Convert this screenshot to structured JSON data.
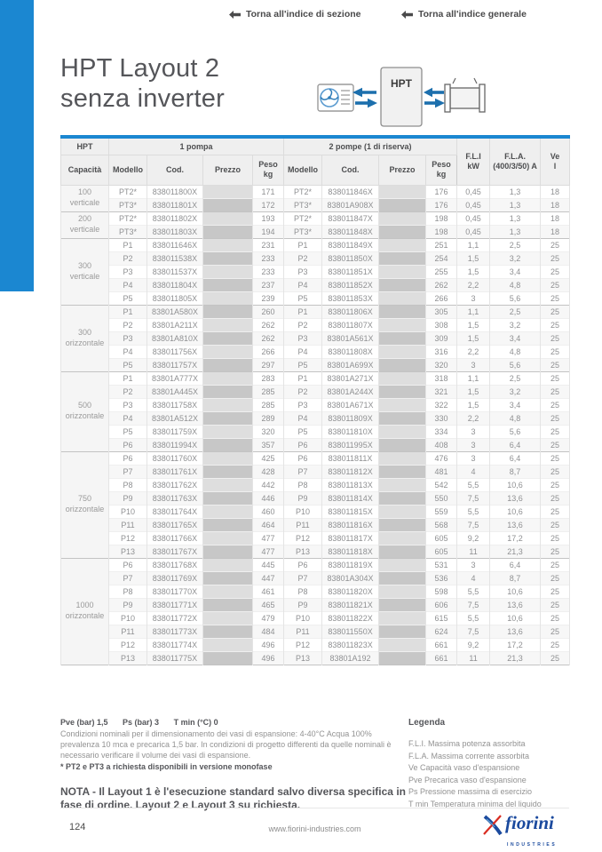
{
  "colors": {
    "accent_blue": "#1b87d1",
    "diagram_arrow_blue": "#1c6fad",
    "logo_blue": "#1b4a9e",
    "logo_red": "#d92c21",
    "price_cell_light": "#dedede",
    "price_cell_dark": "#c7c7c7"
  },
  "nav": {
    "section_index_label": "Torna all'indice di sezione",
    "general_index_label": "Torna all'indice generale"
  },
  "title": {
    "line1": "HPT Layout 2",
    "line2": "senza inverter"
  },
  "diagram": {
    "hpt_label": "HPT"
  },
  "icons": {
    "back_arrow": "left-arrow",
    "fan_unit": "fan-coil-unit",
    "heat_exchanger": "radiator"
  },
  "table": {
    "header": {
      "hpt": "HPT",
      "one_pump": "1 pompa",
      "two_pumps": "2 pompe (1 di riserva)",
      "capacity": "Capacità",
      "model": "Modello",
      "code": "Cod.",
      "price": "Prezzo",
      "weight": "Peso kg",
      "fli": "F.L.I kW",
      "fla": "F.L.A. (400/3/50) A",
      "ve": "Ve l"
    },
    "groups": [
      {
        "capacity": {
          "value": "100",
          "orientation": "verticale"
        },
        "rows": [
          [
            "PT2*",
            "838011800X",
            "171",
            "PT2*",
            "838011846X",
            "176",
            "0,45",
            "1,3",
            "18"
          ],
          [
            "PT3*",
            "838011801X",
            "172",
            "PT3*",
            "83801A908X",
            "176",
            "0,45",
            "1,3",
            "18"
          ]
        ]
      },
      {
        "capacity": {
          "value": "200",
          "orientation": "verticale"
        },
        "rows": [
          [
            "PT2*",
            "838011802X",
            "193",
            "PT2*",
            "838011847X",
            "198",
            "0,45",
            "1,3",
            "18"
          ],
          [
            "PT3*",
            "838011803X",
            "194",
            "PT3*",
            "838011848X",
            "198",
            "0,45",
            "1,3",
            "18"
          ]
        ]
      },
      {
        "capacity": {
          "value": "300",
          "orientation": "verticale"
        },
        "rows": [
          [
            "P1",
            "838011646X",
            "231",
            "P1",
            "838011849X",
            "251",
            "1,1",
            "2,5",
            "25"
          ],
          [
            "P2",
            "838011538X",
            "233",
            "P2",
            "838011850X",
            "254",
            "1,5",
            "3,2",
            "25"
          ],
          [
            "P3",
            "838011537X",
            "233",
            "P3",
            "838011851X",
            "255",
            "1,5",
            "3,4",
            "25"
          ],
          [
            "P4",
            "838011804X",
            "237",
            "P4",
            "838011852X",
            "262",
            "2,2",
            "4,8",
            "25"
          ],
          [
            "P5",
            "838011805X",
            "239",
            "P5",
            "838011853X",
            "266",
            "3",
            "5,6",
            "25"
          ]
        ]
      },
      {
        "capacity": {
          "value": "300",
          "orientation": "orizzontale"
        },
        "rows": [
          [
            "P1",
            "83801A580X",
            "260",
            "P1",
            "838011806X",
            "305",
            "1,1",
            "2,5",
            "25"
          ],
          [
            "P2",
            "83801A211X",
            "262",
            "P2",
            "838011807X",
            "308",
            "1,5",
            "3,2",
            "25"
          ],
          [
            "P3",
            "83801A810X",
            "262",
            "P3",
            "83801A561X",
            "309",
            "1,5",
            "3,4",
            "25"
          ],
          [
            "P4",
            "838011756X",
            "266",
            "P4",
            "838011808X",
            "316",
            "2,2",
            "4,8",
            "25"
          ],
          [
            "P5",
            "838011757X",
            "297",
            "P5",
            "83801A699X",
            "320",
            "3",
            "5,6",
            "25"
          ]
        ]
      },
      {
        "capacity": {
          "value": "500",
          "orientation": "orizzontale"
        },
        "rows": [
          [
            "P1",
            "83801A777X",
            "283",
            "P1",
            "83801A271X",
            "318",
            "1,1",
            "2,5",
            "25"
          ],
          [
            "P2",
            "83801A445X",
            "285",
            "P2",
            "83801A244X",
            "321",
            "1,5",
            "3,2",
            "25"
          ],
          [
            "P3",
            "838011758X",
            "285",
            "P3",
            "83801A671X",
            "322",
            "1,5",
            "3,4",
            "25"
          ],
          [
            "P4",
            "83801A512X",
            "289",
            "P4",
            "838011809X",
            "330",
            "2,2",
            "4,8",
            "25"
          ],
          [
            "P5",
            "838011759X",
            "320",
            "P5",
            "838011810X",
            "334",
            "3",
            "5,6",
            "25"
          ],
          [
            "P6",
            "838011994X",
            "357",
            "P6",
            "838011995X",
            "408",
            "3",
            "6,4",
            "25"
          ]
        ]
      },
      {
        "capacity": {
          "value": "750",
          "orientation": "orizzontale"
        },
        "rows": [
          [
            "P6",
            "838011760X",
            "425",
            "P6",
            "838011811X",
            "476",
            "3",
            "6,4",
            "25"
          ],
          [
            "P7",
            "838011761X",
            "428",
            "P7",
            "838011812X",
            "481",
            "4",
            "8,7",
            "25"
          ],
          [
            "P8",
            "838011762X",
            "442",
            "P8",
            "838011813X",
            "542",
            "5,5",
            "10,6",
            "25"
          ],
          [
            "P9",
            "838011763X",
            "446",
            "P9",
            "838011814X",
            "550",
            "7,5",
            "13,6",
            "25"
          ],
          [
            "P10",
            "838011764X",
            "460",
            "P10",
            "838011815X",
            "559",
            "5,5",
            "10,6",
            "25"
          ],
          [
            "P11",
            "838011765X",
            "464",
            "P11",
            "838011816X",
            "568",
            "7,5",
            "13,6",
            "25"
          ],
          [
            "P12",
            "838011766X",
            "477",
            "P12",
            "838011817X",
            "605",
            "9,2",
            "17,2",
            "25"
          ],
          [
            "P13",
            "838011767X",
            "477",
            "P13",
            "838011818X",
            "605",
            "11",
            "21,3",
            "25"
          ]
        ]
      },
      {
        "capacity": {
          "value": "1000",
          "orientation": "orizzontale"
        },
        "rows": [
          [
            "P6",
            "838011768X",
            "445",
            "P6",
            "838011819X",
            "531",
            "3",
            "6,4",
            "25"
          ],
          [
            "P7",
            "838011769X",
            "447",
            "P7",
            "83801A304X",
            "536",
            "4",
            "8,7",
            "25"
          ],
          [
            "P8",
            "838011770X",
            "461",
            "P8",
            "838011820X",
            "598",
            "5,5",
            "10,6",
            "25"
          ],
          [
            "P9",
            "838011771X",
            "465",
            "P9",
            "838011821X",
            "606",
            "7,5",
            "13,6",
            "25"
          ],
          [
            "P10",
            "838011772X",
            "479",
            "P10",
            "838011822X",
            "615",
            "5,5",
            "10,6",
            "25"
          ],
          [
            "P11",
            "838011773X",
            "484",
            "P11",
            "838011550X",
            "624",
            "7,5",
            "13,6",
            "25"
          ],
          [
            "P12",
            "838011774X",
            "496",
            "P12",
            "838011823X",
            "661",
            "9,2",
            "17,2",
            "25"
          ],
          [
            "P13",
            "838011775X",
            "496",
            "P13",
            "83801A192",
            "661",
            "11",
            "21,3",
            "25"
          ]
        ]
      }
    ]
  },
  "notes": {
    "params": [
      "Pve (bar) 1,5",
      "Ps (bar) 3",
      "T min (°C) 0"
    ],
    "conditions": "Condizioni nominali per il dimensionamento dei vasi di espansione: 4-40°C Acqua 100% prevalenza 10 mca e precarica 1,5 bar. In condizioni di progetto differenti da quelle nominali è necessario verificare il volume dei vasi di espansione.",
    "pt_note": "* PT2 e PT3 a richiesta disponibili  in versione monofase",
    "nota": "NOTA - Il Layout 1 è l'esecuzione standard salvo diversa specifica in fase di ordine. Layout 2 e Layout 3 su richiesta."
  },
  "legend": {
    "title": "Legenda",
    "items": [
      "F.L.I. Massima potenza assorbita",
      "F.L.A. Massima corrente assorbita",
      "Ve Capacità vaso d'espansione",
      "Pve Precarica vaso d'espansione",
      "Ps Pressione massima di esercizio",
      "T min Temperatura minima del liquido"
    ]
  },
  "footer": {
    "page_number": "124",
    "website": "www.fiorini-industries.com",
    "logo_brand": "fiorini",
    "logo_sub": "INDUSTRIES"
  }
}
